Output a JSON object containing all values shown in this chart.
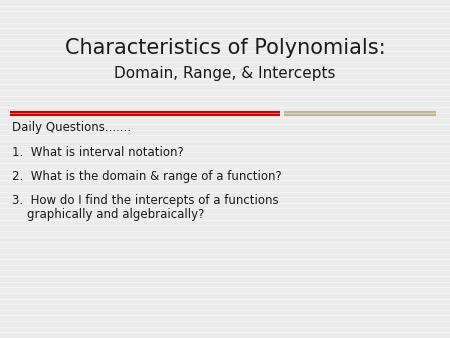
{
  "title_line1": "Characteristics of Polynomials:",
  "title_line2": "Domain, Range, & Intercepts",
  "section_label": "Daily Questions.......",
  "item1": "1.  What is interval notation?",
  "item2": "2.  What is the domain & range of a function?",
  "item3a": "3.  How do I find the intercepts of a functions",
  "item3b": "    graphically and algebraically?",
  "bg_color": "#ebebeb",
  "title_color": "#1a1a1a",
  "text_color": "#1a1a1a",
  "red_bar_color": "#cc0000",
  "tan_bar_color": "#c4b49e",
  "title_fontsize": 15,
  "subtitle_fontsize": 11,
  "section_fontsize": 8.5,
  "item_fontsize": 8.5,
  "stripe_color": "#ffffff",
  "stripe_alpha": 0.45
}
